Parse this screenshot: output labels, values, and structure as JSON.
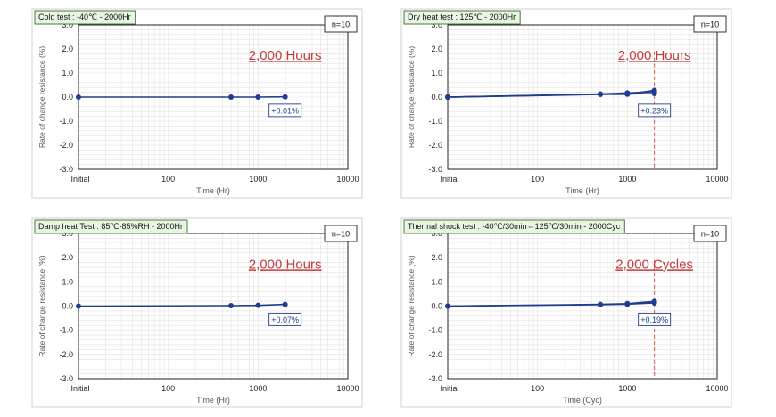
{
  "chart_data": [
    {
      "type": "line",
      "title": "Cold test : -40℃ - 2000Hr",
      "sample": "n=10",
      "xlabel": "Time (Hr)",
      "ylabel": "Rate of change resistance (%)",
      "xscale": "log",
      "xticks": [
        "Initial",
        "100",
        "1000",
        "10000"
      ],
      "yticks": [
        "3.0",
        "2.0",
        "1.0",
        "0.0",
        "-1.0",
        "-2.0",
        "-3.0"
      ],
      "ylim": [
        -3,
        3
      ],
      "grid": true,
      "milestone": {
        "x": 2000,
        "label": "2,000 Hours"
      },
      "result_label": "+0.01%",
      "series": [
        {
          "x": [
            10,
            500,
            1000,
            2000
          ],
          "y": [
            0.0,
            0.0,
            0.0,
            0.01
          ],
          "color": "#1f3c8f"
        }
      ]
    },
    {
      "type": "line",
      "title": "Dry heat test : 125℃ - 2000Hr",
      "sample": "n=10",
      "xlabel": "Time (Hr)",
      "ylabel": "Rate of change resistance (%)",
      "xscale": "log",
      "xticks": [
        "Initial",
        "100",
        "1000",
        "10000"
      ],
      "yticks": [
        "3.0",
        "2.0",
        "1.0",
        "0.0",
        "-1.0",
        "-2.0",
        "-3.0"
      ],
      "ylim": [
        -3,
        3
      ],
      "grid": true,
      "milestone": {
        "x": 2000,
        "label": "2,000 Hours"
      },
      "result_label": "+0.23%",
      "series": [
        {
          "x": [
            10,
            500,
            1000,
            2000
          ],
          "y": [
            0.0,
            0.13,
            0.17,
            0.23
          ],
          "color": "#1f3c8f"
        },
        {
          "x": [
            10,
            500,
            1000,
            2000
          ],
          "y": [
            0.0,
            0.12,
            0.13,
            0.15
          ],
          "color": "#1f3c8f"
        },
        {
          "x": [
            10,
            500,
            1000,
            2000
          ],
          "y": [
            0.0,
            0.11,
            0.12,
            0.28
          ],
          "color": "#1f3c8f"
        }
      ]
    },
    {
      "type": "line",
      "title": "Damp heat Test : 85℃-85%RH - 2000Hr",
      "sample": "n=10",
      "xlabel": "Time (Hr)",
      "ylabel": "Rate of change resistance (%)",
      "xscale": "log",
      "xticks": [
        "Initial",
        "100",
        "1000",
        "10000"
      ],
      "yticks": [
        "3.0",
        "2.0",
        "1.0",
        "0.0",
        "-1.0",
        "-2.0",
        "-3.0"
      ],
      "ylim": [
        -3,
        3
      ],
      "grid": true,
      "milestone": {
        "x": 2000,
        "label": "2,000 Hours"
      },
      "result_label": "+0.07%",
      "series": [
        {
          "x": [
            10,
            500,
            1000,
            2000
          ],
          "y": [
            0.0,
            0.02,
            0.03,
            0.07
          ],
          "color": "#1f3c8f"
        }
      ]
    },
    {
      "type": "line",
      "title": "Thermal shock test : -40℃/30min⇔125℃/30min - 2000Cyc",
      "sample": "n=10",
      "xlabel": "Time (Cyc)",
      "ylabel": "Rate of change resistance (%)",
      "xscale": "log",
      "xticks": [
        "Initial",
        "100",
        "1000",
        "10000"
      ],
      "yticks": [
        "3.0",
        "2.0",
        "1.0",
        "0.0",
        "-1.0",
        "-2.0",
        "-3.0"
      ],
      "ylim": [
        -3,
        3
      ],
      "grid": true,
      "milestone": {
        "x": 2000,
        "label": "2,000 Cycles"
      },
      "result_label": "+0.19%",
      "series": [
        {
          "x": [
            10,
            500,
            1000,
            2000
          ],
          "y": [
            0.0,
            0.07,
            0.1,
            0.19
          ],
          "color": "#1f3c8f"
        },
        {
          "x": [
            10,
            500,
            1000,
            2000
          ],
          "y": [
            0.0,
            0.06,
            0.08,
            0.13
          ],
          "color": "#1f3c8f"
        }
      ]
    }
  ],
  "colors": {
    "series": "#1f3c8f",
    "milestone_text": "#c23b3b",
    "milestone_line": "#d9534f",
    "title_bg": "#e6f6e2",
    "title_border": "#4a7b3f",
    "result_border": "#35508f",
    "grid": "#e2e2e2"
  }
}
